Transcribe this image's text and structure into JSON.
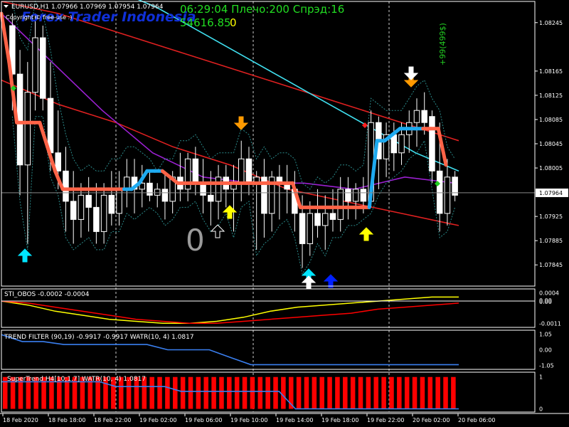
{
  "header": {
    "symbol_line": "EURUSD,H1  1.07966 1.07969 1.07954 1.07964",
    "watermark": "Forex Trader Indonesia",
    "copyright": "Copyright © free-use :)",
    "clock_line": "06:29:04 Плечо:200 Спрэд:16",
    "balance_value": "54616.85",
    "balance_suffix": "0",
    "profit_label": "+99(499$)",
    "big_counter": "0"
  },
  "colors": {
    "background": "#000000",
    "bull": "#ffffff",
    "bear": "#ffffff",
    "trend_up": "#1eaaf0",
    "trend_down": "#ff6347",
    "ma_red": "#e02020",
    "ma_cyan": "#40e0f0",
    "ma_purple": "#9a20d0",
    "channel": "#2a8a8a",
    "clock_green": "#22dd22",
    "balance_yellow": "#ffff00",
    "arrow_orange": "#ff9a00",
    "arrow_cyan": "#00e5ff",
    "arrow_blue": "#0020ff",
    "arrow_yellow": "#ffff00",
    "sub_yellow": "#ffff00",
    "sub_red": "#ff0000",
    "sub_blue": "#3a7ff0"
  },
  "chart_data": [
    {
      "type": "candlestick",
      "symbol": "EURUSD",
      "timeframe": "H1",
      "current_price": "1.07964",
      "y_ticks": [
        "1.08245",
        "1.08165",
        "1.08125",
        "1.08085",
        "1.08045",
        "1.08005",
        "1.07925",
        "1.07885",
        "1.07845"
      ],
      "ylim": [
        1.0781,
        1.0828
      ],
      "candles": [
        {
          "o": 1.0824,
          "h": 1.0826,
          "l": 1.081,
          "c": 1.0816
        },
        {
          "o": 1.0816,
          "h": 1.082,
          "l": 1.0796,
          "c": 1.0801
        },
        {
          "o": 1.0801,
          "h": 1.0818,
          "l": 1.0788,
          "c": 1.0813
        },
        {
          "o": 1.0813,
          "h": 1.0826,
          "l": 1.081,
          "c": 1.0822
        },
        {
          "o": 1.0822,
          "h": 1.0824,
          "l": 1.081,
          "c": 1.0812
        },
        {
          "o": 1.0812,
          "h": 1.0818,
          "l": 1.08,
          "c": 1.0803
        },
        {
          "o": 1.0803,
          "h": 1.081,
          "l": 1.0797,
          "c": 1.08
        },
        {
          "o": 1.08,
          "h": 1.0804,
          "l": 1.079,
          "c": 1.0795
        },
        {
          "o": 1.0795,
          "h": 1.08,
          "l": 1.0788,
          "c": 1.0792
        },
        {
          "o": 1.0792,
          "h": 1.0798,
          "l": 1.0789,
          "c": 1.0796
        },
        {
          "o": 1.0796,
          "h": 1.0799,
          "l": 1.079,
          "c": 1.0794
        },
        {
          "o": 1.0794,
          "h": 1.0798,
          "l": 1.0788,
          "c": 1.079
        },
        {
          "o": 1.079,
          "h": 1.0798,
          "l": 1.0788,
          "c": 1.0796
        },
        {
          "o": 1.0796,
          "h": 1.08,
          "l": 1.0791,
          "c": 1.0793
        },
        {
          "o": 1.0793,
          "h": 1.08,
          "l": 1.0791,
          "c": 1.0797
        },
        {
          "o": 1.0797,
          "h": 1.0802,
          "l": 1.0794,
          "c": 1.0799
        },
        {
          "o": 1.0799,
          "h": 1.0802,
          "l": 1.0793,
          "c": 1.0797
        },
        {
          "o": 1.0797,
          "h": 1.0801,
          "l": 1.0794,
          "c": 1.0798
        },
        {
          "o": 1.0798,
          "h": 1.08,
          "l": 1.0795,
          "c": 1.0796
        },
        {
          "o": 1.0796,
          "h": 1.0798,
          "l": 1.0794,
          "c": 1.0797
        },
        {
          "o": 1.0797,
          "h": 1.08,
          "l": 1.0792,
          "c": 1.0795
        },
        {
          "o": 1.0795,
          "h": 1.08,
          "l": 1.0793,
          "c": 1.0799
        },
        {
          "o": 1.0799,
          "h": 1.0803,
          "l": 1.0795,
          "c": 1.0797
        },
        {
          "o": 1.0797,
          "h": 1.0803,
          "l": 1.0795,
          "c": 1.0802
        },
        {
          "o": 1.0802,
          "h": 1.0804,
          "l": 1.0796,
          "c": 1.0798
        },
        {
          "o": 1.0798,
          "h": 1.0802,
          "l": 1.0793,
          "c": 1.0796
        },
        {
          "o": 1.0796,
          "h": 1.08,
          "l": 1.0791,
          "c": 1.0795
        },
        {
          "o": 1.0795,
          "h": 1.0801,
          "l": 1.0792,
          "c": 1.0799
        },
        {
          "o": 1.0799,
          "h": 1.0801,
          "l": 1.0794,
          "c": 1.0797
        },
        {
          "o": 1.0797,
          "h": 1.0801,
          "l": 1.079,
          "c": 1.0798
        },
        {
          "o": 1.0798,
          "h": 1.0805,
          "l": 1.0795,
          "c": 1.0802
        },
        {
          "o": 1.0802,
          "h": 1.0804,
          "l": 1.0796,
          "c": 1.0798
        },
        {
          "o": 1.0798,
          "h": 1.08,
          "l": 1.0787,
          "c": 1.0799
        },
        {
          "o": 1.0799,
          "h": 1.0802,
          "l": 1.0789,
          "c": 1.0793
        },
        {
          "o": 1.0793,
          "h": 1.08,
          "l": 1.079,
          "c": 1.0799
        },
        {
          "o": 1.0799,
          "h": 1.0801,
          "l": 1.0792,
          "c": 1.0798
        },
        {
          "o": 1.0798,
          "h": 1.0801,
          "l": 1.0793,
          "c": 1.0797
        },
        {
          "o": 1.0797,
          "h": 1.08,
          "l": 1.079,
          "c": 1.0793
        },
        {
          "o": 1.0793,
          "h": 1.0796,
          "l": 1.0784,
          "c": 1.0788
        },
        {
          "o": 1.0788,
          "h": 1.0795,
          "l": 1.0786,
          "c": 1.0793
        },
        {
          "o": 1.0793,
          "h": 1.0797,
          "l": 1.0789,
          "c": 1.0791
        },
        {
          "o": 1.0791,
          "h": 1.0796,
          "l": 1.0787,
          "c": 1.0793
        },
        {
          "o": 1.0793,
          "h": 1.0797,
          "l": 1.079,
          "c": 1.0792
        },
        {
          "o": 1.0792,
          "h": 1.0799,
          "l": 1.079,
          "c": 1.0797
        },
        {
          "o": 1.0797,
          "h": 1.0799,
          "l": 1.0792,
          "c": 1.0795
        },
        {
          "o": 1.0795,
          "h": 1.0798,
          "l": 1.0792,
          "c": 1.0797
        },
        {
          "o": 1.0797,
          "h": 1.0799,
          "l": 1.0793,
          "c": 1.0795
        },
        {
          "o": 1.0795,
          "h": 1.081,
          "l": 1.0794,
          "c": 1.0808
        },
        {
          "o": 1.0808,
          "h": 1.0809,
          "l": 1.0797,
          "c": 1.0802
        },
        {
          "o": 1.0802,
          "h": 1.0808,
          "l": 1.0799,
          "c": 1.0806
        },
        {
          "o": 1.0806,
          "h": 1.0808,
          "l": 1.08,
          "c": 1.0803
        },
        {
          "o": 1.0803,
          "h": 1.0808,
          "l": 1.0801,
          "c": 1.0806
        },
        {
          "o": 1.0806,
          "h": 1.081,
          "l": 1.0803,
          "c": 1.0808
        },
        {
          "o": 1.0808,
          "h": 1.0812,
          "l": 1.0804,
          "c": 1.081
        },
        {
          "o": 1.081,
          "h": 1.0813,
          "l": 1.0806,
          "c": 1.0808
        },
        {
          "o": 1.0809,
          "h": 1.081,
          "l": 1.0798,
          "c": 1.08
        },
        {
          "o": 1.08,
          "h": 1.0808,
          "l": 1.079,
          "c": 1.0793
        },
        {
          "o": 1.0793,
          "h": 1.0802,
          "l": 1.0791,
          "c": 1.0799
        },
        {
          "o": 1.0799,
          "h": 1.08,
          "l": 1.0795,
          "c": 1.0796
        }
      ],
      "indicators": {
        "trend_line": [
          1.0826,
          1.0818,
          1.0808,
          1.0808,
          1.0808,
          1.0808,
          1.0804,
          1.08,
          1.0797,
          1.0797,
          1.0797,
          1.0797,
          1.0797,
          1.0797,
          1.0797,
          1.0797,
          1.0797,
          1.0797,
          1.0798,
          1.08,
          1.08,
          1.08,
          1.0799,
          1.0798,
          1.0798,
          1.0798,
          1.0798,
          1.0798,
          1.0798,
          1.0798,
          1.0798,
          1.0798,
          1.0798,
          1.0798,
          1.0798,
          1.0798,
          1.0798,
          1.0798,
          1.0798,
          1.0794,
          1.0794,
          1.0794,
          1.0794,
          1.0794,
          1.0794,
          1.0794,
          1.0794,
          1.0794,
          1.0794,
          1.0805,
          1.0805,
          1.0806,
          1.0807,
          1.0807,
          1.0807,
          1.0807,
          1.0807,
          1.0807,
          1.0801
        ],
        "trend_dir": [
          "d",
          "d",
          "d",
          "d",
          "d",
          "d",
          "d",
          "d",
          "d",
          "d",
          "d",
          "d",
          "d",
          "d",
          "d",
          "d",
          "u",
          "u",
          "u",
          "u",
          "u",
          "d",
          "d",
          "d",
          "d",
          "d",
          "d",
          "d",
          "d",
          "d",
          "d",
          "d",
          "d",
          "d",
          "d",
          "d",
          "d",
          "d",
          "d",
          "d",
          "d",
          "d",
          "d",
          "d",
          "d",
          "d",
          "d",
          "d",
          "u",
          "u",
          "u",
          "u",
          "u",
          "u",
          "u",
          "d",
          "d",
          "d"
        ],
        "ma_red_fast": [
          1.0828,
          1.0826,
          1.0823,
          1.082,
          1.0817,
          1.0814,
          1.0811,
          1.0808,
          1.0805
        ],
        "ma_red_slow": [
          1.0815,
          1.0811,
          1.0808,
          1.0804,
          1.0801,
          1.0797,
          1.0795,
          1.0793,
          1.0791
        ],
        "ma_cyan": [
          1.083,
          1.0827,
          1.0823,
          1.0819,
          1.0815,
          1.0811,
          1.0807,
          1.0803,
          1.08
        ],
        "ma_purple": [
          1.0826,
          1.0818,
          1.081,
          1.0803,
          1.0799,
          1.0798,
          1.0798,
          1.0797,
          1.0799,
          1.0798
        ]
      },
      "signals": [
        {
          "type": "arrow-up",
          "color": "cyan",
          "at": 2,
          "price": 1.0788
        },
        {
          "type": "arrow-down",
          "color": "orange",
          "at": 22,
          "price": 1.0807
        },
        {
          "type": "arrow-up",
          "color": "yellow",
          "at": 21,
          "price": 1.0793
        },
        {
          "type": "arrow-up",
          "color": "white-outline",
          "at": 19,
          "price": 1.0791
        },
        {
          "type": "arrow-up",
          "color": "yellow",
          "at": 33,
          "price": 1.0793
        },
        {
          "type": "arrow-up",
          "color": "yellow",
          "at": 45,
          "price": 1.0791
        },
        {
          "type": "double-arrow-up",
          "color": "cyan",
          "at": 38,
          "price": 1.0784
        },
        {
          "type": "arrow-up",
          "color": "blue",
          "at": 40,
          "price": 1.0784
        },
        {
          "type": "double-arrow-down",
          "color": "orange",
          "at": 51,
          "price": 1.0813
        }
      ],
      "time_labels": [
        "18 Feb 2020",
        "18 Feb 18:00",
        "18 Feb 22:00",
        "19 Feb 02:00",
        "19 Feb 06:00",
        "19 Feb 10:00",
        "19 Feb 14:00",
        "19 Feb 18:00",
        "19 Feb 22:00",
        "20 Feb 02:00",
        "20 Feb 06:00"
      ]
    },
    {
      "type": "line",
      "title": "STI_OBOS -0.0002 -0.0004",
      "y_ticks": [
        "0.0004",
        "0.00",
        "0.00",
        "-0.0011"
      ],
      "series": [
        {
          "color": "yellow",
          "values": [
            0.0,
            -0.0002,
            -0.0005,
            -0.0007,
            -0.0009,
            -0.001,
            -0.0011,
            -0.0011,
            -0.001,
            -0.0008,
            -0.0005,
            -0.0003,
            -0.0002,
            -0.0001,
            0.0,
            0.0001,
            0.0002,
            0.0002
          ]
        },
        {
          "color": "red",
          "values": [
            0.0,
            -0.0001,
            -0.0003,
            -0.0005,
            -0.0007,
            -0.0009,
            -0.001,
            -0.0011,
            -0.0011,
            -0.001,
            -0.0009,
            -0.0008,
            -0.0007,
            -0.0006,
            -0.0004,
            -0.0003,
            -0.0002,
            -0.0001
          ]
        }
      ],
      "ylim": [
        -0.0013,
        0.0006
      ]
    },
    {
      "type": "line",
      "title": "TREND FILTER (90,19) -0.9917 -0.9917  WATR(10, 4) 1.0817",
      "y_ticks": [
        "1.05",
        "0.00",
        "-1.05"
      ],
      "series": [
        {
          "color": "blue",
          "values": [
            1.0,
            0.55,
            0.55,
            0.35,
            0.35,
            0.35,
            0.35,
            0.35,
            0.0,
            0.0,
            0.0,
            -0.5,
            -0.99,
            -0.99,
            -0.99,
            -0.99,
            -0.99,
            -0.99,
            -0.99,
            -0.99,
            -0.99,
            -0.99,
            -0.99
          ]
        }
      ],
      "ylim": [
        -1.3,
        1.3
      ]
    },
    {
      "type": "bar",
      "title": "SuperTrend H4[10;1.7]  WATR(10, 4) 1.0817",
      "y_ticks": [
        "1",
        "0"
      ],
      "bar_value": 1,
      "bar_count": 59,
      "series": [
        {
          "color": "blue",
          "values": [
            0.85,
            0.85,
            0.85,
            0.85,
            0.85,
            0.85,
            0.85,
            0.7,
            0.7,
            0.7,
            0.7,
            0.55,
            0.55,
            0.55,
            0.55,
            0.55,
            0.55,
            0.55,
            0.0,
            0.0,
            0.0,
            0.0,
            0.0,
            0.0,
            0.0,
            0.0,
            0.0,
            0.0,
            0.0
          ]
        }
      ],
      "ylim": [
        -0.1,
        1.15
      ]
    }
  ]
}
